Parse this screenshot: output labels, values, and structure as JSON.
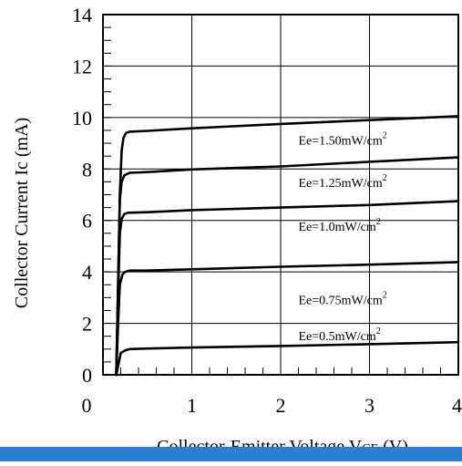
{
  "chart_data": {
    "type": "line",
    "xlabel": "Collector-Emitter Voltage V",
    "xlabel_subscript": "CE",
    "xlabel_suffix": " (V)",
    "ylabel": "Collector Current Ic (mA)",
    "xlim": [
      0,
      4
    ],
    "ylim": [
      0,
      14
    ],
    "x_ticks": [
      "0",
      "1",
      "2",
      "3",
      "4"
    ],
    "y_ticks": [
      "0",
      "2",
      "4",
      "6",
      "8",
      "10",
      "12",
      "14"
    ],
    "grid": true,
    "series": [
      {
        "name": "Ee=0.5mW/cm2",
        "label_text": "Ee=0.5mW/cm",
        "label_sup": "2",
        "x": [
          0.15,
          0.18,
          0.2,
          0.25,
          0.3,
          0.5,
          1,
          2,
          3,
          4
        ],
        "y": [
          0.0,
          0.5,
          0.85,
          0.95,
          1.0,
          1.02,
          1.06,
          1.12,
          1.19,
          1.27
        ]
      },
      {
        "name": "Ee=0.75mW/cm2",
        "label_text": "Ee=0.75mW/cm",
        "label_sup": "2",
        "x": [
          0.15,
          0.17,
          0.19,
          0.22,
          0.25,
          0.3,
          0.5,
          1,
          2,
          3,
          4
        ],
        "y": [
          0.0,
          2.0,
          3.5,
          3.9,
          4.0,
          4.05,
          4.05,
          4.1,
          4.2,
          4.28,
          4.38
        ]
      },
      {
        "name": "Ee=1.0mW/cm2",
        "label_text": "Ee=1.0mW/cm",
        "label_sup": "2",
        "x": [
          0.15,
          0.17,
          0.19,
          0.21,
          0.24,
          0.28,
          0.5,
          1,
          2,
          3,
          4
        ],
        "y": [
          0.0,
          3.0,
          5.5,
          6.05,
          6.25,
          6.3,
          6.32,
          6.4,
          6.5,
          6.6,
          6.75
        ]
      },
      {
        "name": "Ee=1.25mW/cm2",
        "label_text": "Ee=1.25mW/cm",
        "label_sup": "2",
        "x": [
          0.15,
          0.17,
          0.19,
          0.21,
          0.24,
          0.3,
          0.5,
          1,
          2,
          3,
          4
        ],
        "y": [
          0.0,
          3.5,
          6.8,
          7.5,
          7.75,
          7.85,
          7.88,
          7.98,
          8.1,
          8.28,
          8.45
        ]
      },
      {
        "name": "Ee=1.50mW/cm2",
        "label_text": "Ee=1.50mW/cm",
        "label_sup": "2",
        "x": [
          0.15,
          0.17,
          0.19,
          0.21,
          0.23,
          0.26,
          0.3,
          0.5,
          1,
          2,
          3,
          4
        ],
        "y": [
          0.0,
          3.5,
          7.0,
          8.7,
          9.2,
          9.4,
          9.45,
          9.48,
          9.58,
          9.75,
          9.9,
          10.05
        ]
      }
    ],
    "label_positions": [
      {
        "series": 0,
        "x": 2.2,
        "y": 1.35
      },
      {
        "series": 1,
        "x": 2.2,
        "y": 2.75
      },
      {
        "series": 2,
        "x": 2.2,
        "y": 5.6
      },
      {
        "series": 3,
        "x": 2.2,
        "y": 7.3
      },
      {
        "series": 4,
        "x": 2.2,
        "y": 8.95
      }
    ]
  },
  "colors": {
    "line": "#000000",
    "grid": "#000000",
    "bottom_strip": "#2a7fd0"
  }
}
